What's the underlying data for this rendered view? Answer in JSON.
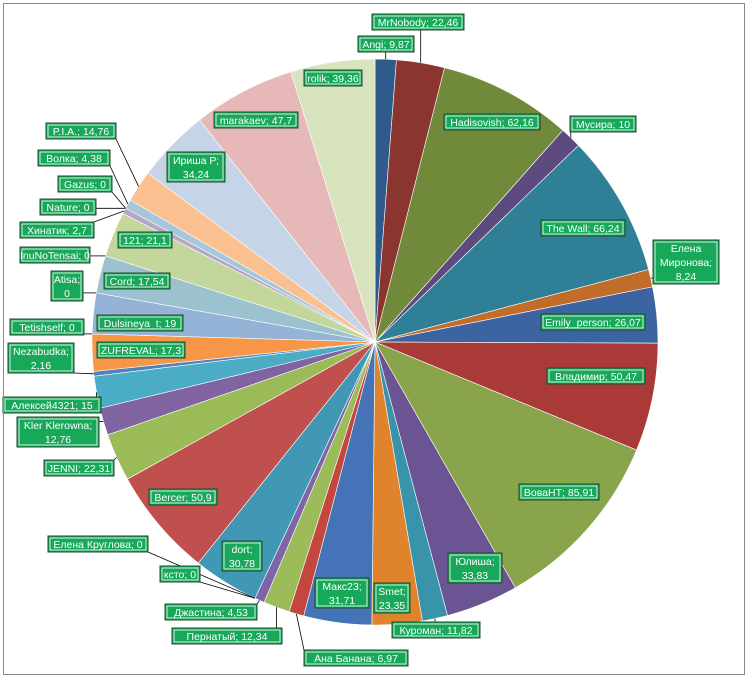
{
  "chart_data": {
    "type": "pie",
    "title": "",
    "start_angle_deg": 0,
    "direction": "clockwise",
    "label_format": "name; value",
    "label_style": {
      "fill": "#18a85a",
      "text": "#ffffff",
      "border": "#1d4d2e"
    },
    "slices": [
      {
        "name": "Angi",
        "value": 9.87,
        "display": "Angi; 9,87",
        "color": "#2e5a8c"
      },
      {
        "name": "MrNobody",
        "value": 22.46,
        "display": "MrNobody; 22,46",
        "color": "#8b3530"
      },
      {
        "name": "Hadisovish",
        "value": 62.16,
        "display": "Hadisovish; 62,16",
        "color": "#71893a"
      },
      {
        "name": "Мусира",
        "value": 10,
        "display": "Мусира; 10",
        "color": "#5d4a7e"
      },
      {
        "name": "The Wall",
        "value": 66.24,
        "display": "The Wall; 66,24",
        "color": "#2f7f97"
      },
      {
        "name": "Елена Миронова",
        "value": 8.24,
        "display": "Елена Миронова; 8,24",
        "color": "#c26c2a"
      },
      {
        "name": "Emily_person",
        "value": 26.07,
        "display": "Emily_person; 26,07",
        "color": "#3b64a0"
      },
      {
        "name": "Владимир",
        "value": 50.47,
        "display": "Владимир; 50,47",
        "color": "#a93a38"
      },
      {
        "name": "ВоваНТ",
        "value": 85.91,
        "display": "ВоваНТ; 85,91",
        "color": "#89a44a"
      },
      {
        "name": "Юлиша",
        "value": 33.83,
        "display": "Юлиша; 33,83",
        "color": "#6a5493"
      },
      {
        "name": "Куроман",
        "value": 11.82,
        "display": "Куроман; 11,82",
        "color": "#3893ab"
      },
      {
        "name": "Smet",
        "value": 23.35,
        "display": "Smet; 23,35",
        "color": "#e0832d"
      },
      {
        "name": "Макс23",
        "value": 31.71,
        "display": "Макс23; 31,71",
        "color": "#4473b7"
      },
      {
        "name": "Ана Банана",
        "value": 6.97,
        "display": "Ана Банана; 6,97",
        "color": "#c4473f"
      },
      {
        "name": "Пернатый",
        "value": 12.34,
        "display": "Пернатый; 12,34",
        "color": "#9cbb59"
      },
      {
        "name": "Джастина",
        "value": 4.53,
        "display": "Джастина; 4,53",
        "color": "#7e65a8"
      },
      {
        "name": "ксто",
        "value": 0,
        "display": "ксто; 0",
        "color": "#4bacc6"
      },
      {
        "name": "Елена Круглова",
        "value": 0,
        "display": "Елена Круглова; 0",
        "color": "#f79646"
      },
      {
        "name": "dort",
        "value": 30.78,
        "display": "dort; 30,78",
        "color": "#4198b5"
      },
      {
        "name": "Bercer",
        "value": 50.9,
        "display": "Bercer; 50,9",
        "color": "#c0504d"
      },
      {
        "name": "JENNI",
        "value": 22.31,
        "display": "JENNI; 22,31",
        "color": "#9bbb59"
      },
      {
        "name": "Kler Klerowna",
        "value": 12.76,
        "display": "Kler Klerowna; 12,76",
        "color": "#8064a2"
      },
      {
        "name": "Алексей4321",
        "value": 15,
        "display": "Алексей4321; 15",
        "color": "#4bacc6"
      },
      {
        "name": "Nezabudka",
        "value": 2.16,
        "display": "Nezabudka; 2,16",
        "color": "#4f81bd"
      },
      {
        "name": "ZUFREVAL",
        "value": 17.3,
        "display": "ZUFREVAL; 17,3",
        "color": "#f79646"
      },
      {
        "name": "Tetishself",
        "value": 0,
        "display": "Tetishself; 0",
        "color": "#c0504d"
      },
      {
        "name": "Dulsineya_t",
        "value": 19,
        "display": "Dulsineya_t; 19",
        "color": "#95b3d7"
      },
      {
        "name": "Atisa",
        "value": 0,
        "display": "Atisa; 0",
        "color": "#d99694"
      },
      {
        "name": "Cord",
        "value": 17.54,
        "display": "Cord; 17,54",
        "color": "#9cc2cf"
      },
      {
        "name": "InuNoTensai",
        "value": 0,
        "display": "InuNoTensai; 0",
        "color": "#b3a2c7"
      },
      {
        "name": "121",
        "value": 21.1,
        "display": "121; 21,1",
        "color": "#c3d69b"
      },
      {
        "name": "Хинатик",
        "value": 2.7,
        "display": "Хинатик; 2,7",
        "color": "#b7a6c9"
      },
      {
        "name": "Nature",
        "value": 0,
        "display": "Nature; 0",
        "color": "#93cddd"
      },
      {
        "name": "Gazus",
        "value": 0,
        "display": "Gazus; 0",
        "color": "#d7e4bd"
      },
      {
        "name": "Волка",
        "value": 4.38,
        "display": "Волка; 4,38",
        "color": "#a5c7d9"
      },
      {
        "name": "P.I.A.",
        "value": 14.76,
        "display": "P.I.A.; 14,76",
        "color": "#fac090"
      },
      {
        "name": "Ириша Р",
        "value": 34.24,
        "display": "Ириша Р; 34,24",
        "color": "#c6d4e8"
      },
      {
        "name": "marakaev",
        "value": 47.7,
        "display": "marakaev; 47,7",
        "color": "#e6b9b8"
      },
      {
        "name": "rolik",
        "value": 39.36,
        "display": "rolik; 39,36",
        "color": "#d7e4bd"
      }
    ]
  }
}
